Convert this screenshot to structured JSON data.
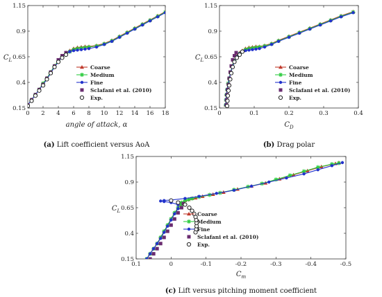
{
  "series_style": [
    {
      "name": "Coarse",
      "color": "#c0392b",
      "marker": "triangle"
    },
    {
      "name": "Medium",
      "color": "#2ecc40",
      "marker": "star"
    },
    {
      "name": "Fine",
      "color": "#2233cc",
      "marker": "dot"
    },
    {
      "name": "Sclafani et al. (2010)",
      "color": "#6a2c70",
      "marker": "square"
    },
    {
      "name": "Exp.",
      "color": "#222222",
      "marker": "circle"
    }
  ],
  "chart_data": [
    {
      "type": "line",
      "caption_tag": "(a)",
      "caption_text": " Lift coefficient versus AoA",
      "ylabel": "C",
      "ylabel_sub": "L",
      "xlabel": "angle of attack, ",
      "xlabel_sym": "α",
      "xlim": [
        0,
        18
      ],
      "ylim": [
        0.15,
        1.15
      ],
      "xticks": [
        "0",
        "2",
        "4",
        "6",
        "8",
        "10",
        "12",
        "14",
        "16",
        "18"
      ],
      "xtick_vals": [
        0,
        2,
        4,
        6,
        8,
        10,
        12,
        14,
        16,
        18
      ],
      "yticks": [
        "0.15",
        "0.4",
        "0.65",
        "0.9",
        "1.15"
      ],
      "ytick_vals": [
        0.15,
        0.4,
        0.65,
        0.9,
        1.15
      ],
      "series": [
        {
          "name": "Coarse",
          "x": [
            0,
            0.5,
            1,
            1.5,
            2,
            2.5,
            3,
            3.5,
            4,
            4.5,
            5,
            5.5,
            6,
            6.5,
            7,
            7.5,
            8,
            9,
            10,
            11,
            12,
            13,
            14,
            15,
            16,
            17,
            18
          ],
          "y": [
            0.18,
            0.23,
            0.28,
            0.33,
            0.39,
            0.44,
            0.5,
            0.56,
            0.61,
            0.66,
            0.69,
            0.71,
            0.73,
            0.74,
            0.745,
            0.75,
            0.75,
            0.76,
            0.78,
            0.81,
            0.85,
            0.89,
            0.93,
            0.97,
            1.01,
            1.05,
            1.09
          ]
        },
        {
          "name": "Medium",
          "x": [
            0,
            0.5,
            1,
            1.5,
            2,
            2.5,
            3,
            3.5,
            4,
            4.5,
            5,
            5.5,
            6,
            6.5,
            7,
            7.5,
            8,
            9,
            10,
            11,
            12,
            13,
            14,
            15,
            16,
            17,
            18
          ],
          "y": [
            0.18,
            0.23,
            0.28,
            0.33,
            0.39,
            0.44,
            0.5,
            0.56,
            0.61,
            0.65,
            0.68,
            0.7,
            0.72,
            0.73,
            0.735,
            0.74,
            0.745,
            0.755,
            0.775,
            0.805,
            0.845,
            0.885,
            0.925,
            0.965,
            1.005,
            1.045,
            1.085
          ]
        },
        {
          "name": "Fine",
          "x": [
            0,
            0.5,
            1,
            1.5,
            2,
            2.5,
            3,
            3.5,
            4,
            4.5,
            5,
            5.5,
            6,
            6.5,
            7,
            7.5,
            8,
            9,
            10,
            11,
            12,
            13,
            14,
            15,
            16,
            17,
            18
          ],
          "y": [
            0.18,
            0.23,
            0.28,
            0.33,
            0.38,
            0.43,
            0.49,
            0.55,
            0.6,
            0.65,
            0.68,
            0.7,
            0.71,
            0.715,
            0.72,
            0.725,
            0.73,
            0.745,
            0.77,
            0.8,
            0.84,
            0.88,
            0.92,
            0.96,
            1.0,
            1.04,
            1.08
          ]
        },
        {
          "name": "Sclafani et al. (2010)",
          "x": [
            0,
            0.5,
            1,
            1.5,
            2,
            2.5,
            3,
            3.5,
            4,
            4.5,
            5
          ],
          "y": [
            0.18,
            0.23,
            0.28,
            0.33,
            0.38,
            0.44,
            0.5,
            0.56,
            0.62,
            0.66,
            0.69
          ]
        },
        {
          "name": "Exp.",
          "x": [
            0,
            0.5,
            1,
            1.5,
            2,
            2.5,
            3,
            3.5,
            4,
            4.5,
            5
          ],
          "y": [
            0.17,
            0.22,
            0.27,
            0.32,
            0.37,
            0.43,
            0.49,
            0.55,
            0.6,
            0.64,
            0.67
          ]
        }
      ]
    },
    {
      "type": "line",
      "caption_tag": "(b)",
      "caption_text": " Drag polar",
      "ylabel": "C",
      "ylabel_sub": "L",
      "xlabel": "C",
      "xlabel_sub": "D",
      "xlim": [
        0,
        0.4
      ],
      "ylim": [
        0.15,
        1.15
      ],
      "xticks": [
        "0",
        "0.1",
        "0.2",
        "0.3",
        "0.4"
      ],
      "xtick_vals": [
        0,
        0.1,
        0.2,
        0.3,
        0.4
      ],
      "yticks": [
        "0.15",
        "0.4",
        "0.65",
        "0.9",
        "1.15"
      ],
      "ytick_vals": [
        0.15,
        0.4,
        0.65,
        0.9,
        1.15
      ],
      "series": [
        {
          "name": "Coarse",
          "x": [
            0.018,
            0.019,
            0.02,
            0.022,
            0.025,
            0.028,
            0.032,
            0.037,
            0.043,
            0.05,
            0.058,
            0.066,
            0.075,
            0.085,
            0.095,
            0.105,
            0.115,
            0.13,
            0.15,
            0.17,
            0.2,
            0.23,
            0.26,
            0.29,
            0.32,
            0.35,
            0.385
          ],
          "y": [
            0.18,
            0.23,
            0.28,
            0.33,
            0.39,
            0.44,
            0.5,
            0.56,
            0.61,
            0.66,
            0.69,
            0.71,
            0.73,
            0.74,
            0.745,
            0.75,
            0.75,
            0.76,
            0.78,
            0.81,
            0.85,
            0.89,
            0.93,
            0.97,
            1.01,
            1.05,
            1.09
          ]
        },
        {
          "name": "Medium",
          "x": [
            0.018,
            0.019,
            0.02,
            0.022,
            0.025,
            0.028,
            0.032,
            0.037,
            0.043,
            0.05,
            0.058,
            0.066,
            0.075,
            0.085,
            0.095,
            0.105,
            0.115,
            0.13,
            0.15,
            0.17,
            0.2,
            0.23,
            0.26,
            0.29,
            0.32,
            0.35,
            0.385
          ],
          "y": [
            0.18,
            0.23,
            0.28,
            0.33,
            0.39,
            0.44,
            0.5,
            0.56,
            0.61,
            0.65,
            0.68,
            0.7,
            0.72,
            0.73,
            0.735,
            0.74,
            0.745,
            0.755,
            0.775,
            0.805,
            0.845,
            0.885,
            0.925,
            0.965,
            1.005,
            1.045,
            1.085
          ]
        },
        {
          "name": "Fine",
          "x": [
            0.018,
            0.019,
            0.02,
            0.022,
            0.025,
            0.028,
            0.032,
            0.037,
            0.043,
            0.05,
            0.058,
            0.066,
            0.075,
            0.085,
            0.095,
            0.105,
            0.115,
            0.13,
            0.15,
            0.17,
            0.2,
            0.23,
            0.26,
            0.29,
            0.32,
            0.35,
            0.385
          ],
          "y": [
            0.18,
            0.23,
            0.28,
            0.33,
            0.38,
            0.43,
            0.49,
            0.55,
            0.6,
            0.65,
            0.68,
            0.7,
            0.71,
            0.715,
            0.72,
            0.725,
            0.73,
            0.745,
            0.77,
            0.8,
            0.84,
            0.88,
            0.92,
            0.96,
            1.0,
            1.04,
            1.08
          ]
        },
        {
          "name": "Sclafani et al. (2010)",
          "x": [
            0.02,
            0.021,
            0.022,
            0.024,
            0.026,
            0.028,
            0.031,
            0.034,
            0.038,
            0.043,
            0.048
          ],
          "y": [
            0.18,
            0.23,
            0.28,
            0.33,
            0.38,
            0.44,
            0.5,
            0.56,
            0.62,
            0.66,
            0.69
          ]
        },
        {
          "name": "Exp.",
          "x": [
            0.022,
            0.023,
            0.024,
            0.026,
            0.028,
            0.031,
            0.034,
            0.038,
            0.043,
            0.05,
            0.058,
            0.066
          ],
          "y": [
            0.17,
            0.22,
            0.27,
            0.32,
            0.37,
            0.43,
            0.49,
            0.55,
            0.6,
            0.64,
            0.67,
            0.7
          ]
        }
      ]
    },
    {
      "type": "line",
      "caption_tag": "(c)",
      "caption_text": " Lift versus pitching moment coefficient",
      "ylabel": "C",
      "ylabel_sub": "L",
      "xlabel": "C",
      "xlabel_sub": "m",
      "xlim": [
        0.1,
        -0.5
      ],
      "ylim": [
        0.15,
        1.15
      ],
      "xticks": [
        "0.1",
        "0",
        "-0.1",
        "-0.2",
        "-0.3",
        "-0.4",
        "-0.5"
      ],
      "xtick_vals": [
        0.1,
        0,
        -0.1,
        -0.2,
        -0.3,
        -0.4,
        -0.5
      ],
      "yticks": [
        "0.15",
        "0.4",
        "0.65",
        "0.9",
        "1.15"
      ],
      "ytick_vals": [
        0.15,
        0.4,
        0.65,
        0.9,
        1.15
      ],
      "series": [
        {
          "name": "Coarse",
          "x": [
            0.07,
            0.06,
            0.05,
            0.04,
            0.03,
            0.02,
            0.01,
            0.0,
            -0.01,
            -0.02,
            -0.03,
            -0.04,
            -0.05,
            -0.06,
            -0.07,
            -0.09,
            -0.12,
            -0.15,
            -0.19,
            -0.23,
            -0.27,
            -0.31,
            -0.35,
            -0.39,
            -0.43,
            -0.47,
            -0.48
          ],
          "y": [
            0.15,
            0.2,
            0.25,
            0.3,
            0.36,
            0.42,
            0.48,
            0.54,
            0.6,
            0.65,
            0.69,
            0.72,
            0.73,
            0.74,
            0.745,
            0.76,
            0.78,
            0.8,
            0.83,
            0.86,
            0.89,
            0.93,
            0.97,
            1.01,
            1.05,
            1.08,
            1.09
          ]
        },
        {
          "name": "Medium",
          "x": [
            0.07,
            0.06,
            0.05,
            0.04,
            0.03,
            0.02,
            0.01,
            0.0,
            -0.01,
            -0.02,
            -0.03,
            -0.03,
            -0.04,
            -0.05,
            -0.06,
            -0.08,
            -0.11,
            -0.14,
            -0.18,
            -0.22,
            -0.26,
            -0.3,
            -0.34,
            -0.38,
            -0.42,
            -0.46,
            -0.48
          ],
          "y": [
            0.15,
            0.2,
            0.25,
            0.3,
            0.36,
            0.42,
            0.48,
            0.54,
            0.6,
            0.65,
            0.68,
            0.7,
            0.72,
            0.73,
            0.74,
            0.755,
            0.775,
            0.795,
            0.825,
            0.855,
            0.885,
            0.925,
            0.965,
            1.005,
            1.045,
            1.075,
            1.085
          ]
        },
        {
          "name": "Fine",
          "x": [
            0.07,
            0.06,
            0.05,
            0.04,
            0.03,
            0.02,
            0.01,
            0.0,
            -0.01,
            -0.02,
            -0.02,
            0.0,
            0.02,
            0.03,
            0.02,
            0.0,
            -0.04,
            -0.08,
            -0.13,
            -0.18,
            -0.23,
            -0.28,
            -0.33,
            -0.38,
            -0.42,
            -0.46,
            -0.49
          ],
          "y": [
            0.15,
            0.2,
            0.25,
            0.3,
            0.35,
            0.41,
            0.47,
            0.53,
            0.59,
            0.64,
            0.68,
            0.7,
            0.71,
            0.715,
            0.72,
            0.725,
            0.74,
            0.76,
            0.79,
            0.82,
            0.86,
            0.9,
            0.94,
            0.98,
            1.02,
            1.06,
            1.09
          ]
        },
        {
          "name": "Sclafani et al. (2010)",
          "x": [
            0.06,
            0.05,
            0.04,
            0.03,
            0.02,
            0.01,
            0.0,
            -0.01,
            -0.02,
            -0.03,
            -0.035
          ],
          "y": [
            0.15,
            0.2,
            0.25,
            0.3,
            0.36,
            0.42,
            0.48,
            0.54,
            0.6,
            0.65,
            0.69
          ]
        },
        {
          "name": "Exp.",
          "x": [
            -0.07,
            -0.072,
            -0.073,
            -0.073,
            -0.072,
            -0.07,
            -0.066,
            -0.06,
            -0.052,
            -0.04,
            -0.02,
            0.0
          ],
          "y": [
            0.41,
            0.44,
            0.47,
            0.5,
            0.53,
            0.56,
            0.59,
            0.62,
            0.65,
            0.68,
            0.7,
            0.72
          ]
        }
      ]
    }
  ]
}
